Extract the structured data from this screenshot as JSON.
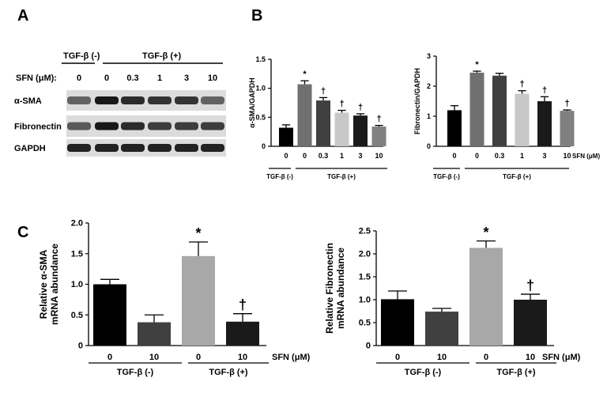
{
  "panels": {
    "a": "A",
    "b": "B",
    "c": "C"
  },
  "blot": {
    "tgf_neg": "TGF-β (-)",
    "tgf_pos": "TGF-β (+)",
    "sfn_label": "SFN (μM):",
    "doses": [
      "0",
      "0",
      "0.3",
      "1",
      "3",
      "10"
    ],
    "rows": [
      "α-SMA",
      "Fibronectin",
      "GAPDH"
    ],
    "band_intensity": [
      [
        0.55,
        0.95,
        0.85,
        0.8,
        0.8,
        0.55
      ],
      [
        0.6,
        0.95,
        0.85,
        0.75,
        0.75,
        0.75
      ],
      [
        0.9,
        0.9,
        0.9,
        0.9,
        0.9,
        0.9
      ]
    ]
  },
  "chart_data": [
    {
      "type": "bar",
      "ylabel": "α-SMA/GAPDH",
      "categories": [
        "0",
        "0",
        "0.3",
        "1",
        "3",
        "10"
      ],
      "values": [
        0.32,
        1.07,
        0.79,
        0.58,
        0.53,
        0.34
      ],
      "errors": [
        0.05,
        0.06,
        0.05,
        0.04,
        0.03,
        0.02
      ],
      "significance": [
        "",
        "*",
        "†",
        "†",
        "†",
        "†"
      ],
      "colors": [
        "#000000",
        "#707070",
        "#404040",
        "#c8c8c8",
        "#1a1a1a",
        "#808080"
      ],
      "ylim": [
        0,
        1.5
      ],
      "yticks": [
        "0",
        "0.5",
        "1.0",
        "1.5"
      ],
      "group_neg": "TGF-β (-)",
      "group_pos": "TGF-β (+)"
    },
    {
      "type": "bar",
      "ylabel": "Fibronectin/GAPDH",
      "categories": [
        "0",
        "0",
        "0.3",
        "1",
        "3",
        "10"
      ],
      "values": [
        1.2,
        2.45,
        2.35,
        1.75,
        1.5,
        1.18
      ],
      "errors": [
        0.15,
        0.05,
        0.08,
        0.1,
        0.15,
        0.03
      ],
      "significance": [
        "",
        "*",
        "",
        "†",
        "†",
        "†"
      ],
      "colors": [
        "#000000",
        "#707070",
        "#404040",
        "#c8c8c8",
        "#1a1a1a",
        "#808080"
      ],
      "ylim": [
        0,
        3
      ],
      "yticks": [
        "0",
        "1",
        "2",
        "3"
      ],
      "xunit": "SFN (μM)",
      "group_neg": "TGF-β (-)",
      "group_pos": "TGF-β (+)"
    },
    {
      "type": "bar",
      "ylabel": "Relative α-SMA\nmRNA abundance",
      "categories": [
        "0",
        "10",
        "0",
        "10"
      ],
      "values": [
        1.0,
        0.38,
        1.46,
        0.39
      ],
      "errors": [
        0.08,
        0.12,
        0.23,
        0.13
      ],
      "significance": [
        "",
        "",
        "*",
        "†"
      ],
      "colors": [
        "#000000",
        "#404040",
        "#a8a8a8",
        "#1a1a1a"
      ],
      "ylim": [
        0,
        2.0
      ],
      "yticks": [
        "0",
        "0.5",
        "1.0",
        "1.5",
        "2.0"
      ],
      "xunit": "SFN (μM)",
      "group_neg": "TGF-β (-)",
      "group_pos": "TGF-β (+)"
    },
    {
      "type": "bar",
      "ylabel": "Relative Fibronectin\nmRNA abundance",
      "categories": [
        "0",
        "10",
        "0",
        "10"
      ],
      "values": [
        1.01,
        0.74,
        2.13,
        1.0
      ],
      "errors": [
        0.18,
        0.07,
        0.15,
        0.12
      ],
      "significance": [
        "",
        "",
        "*",
        "†"
      ],
      "colors": [
        "#000000",
        "#404040",
        "#a8a8a8",
        "#1a1a1a"
      ],
      "ylim": [
        0,
        2.5
      ],
      "yticks": [
        "0",
        "0.5",
        "1.0",
        "1.5",
        "2.0",
        "2.5"
      ],
      "xunit": "SFN (μM)",
      "group_neg": "TGF-β (-)",
      "group_pos": "TGF-β (+)"
    }
  ]
}
